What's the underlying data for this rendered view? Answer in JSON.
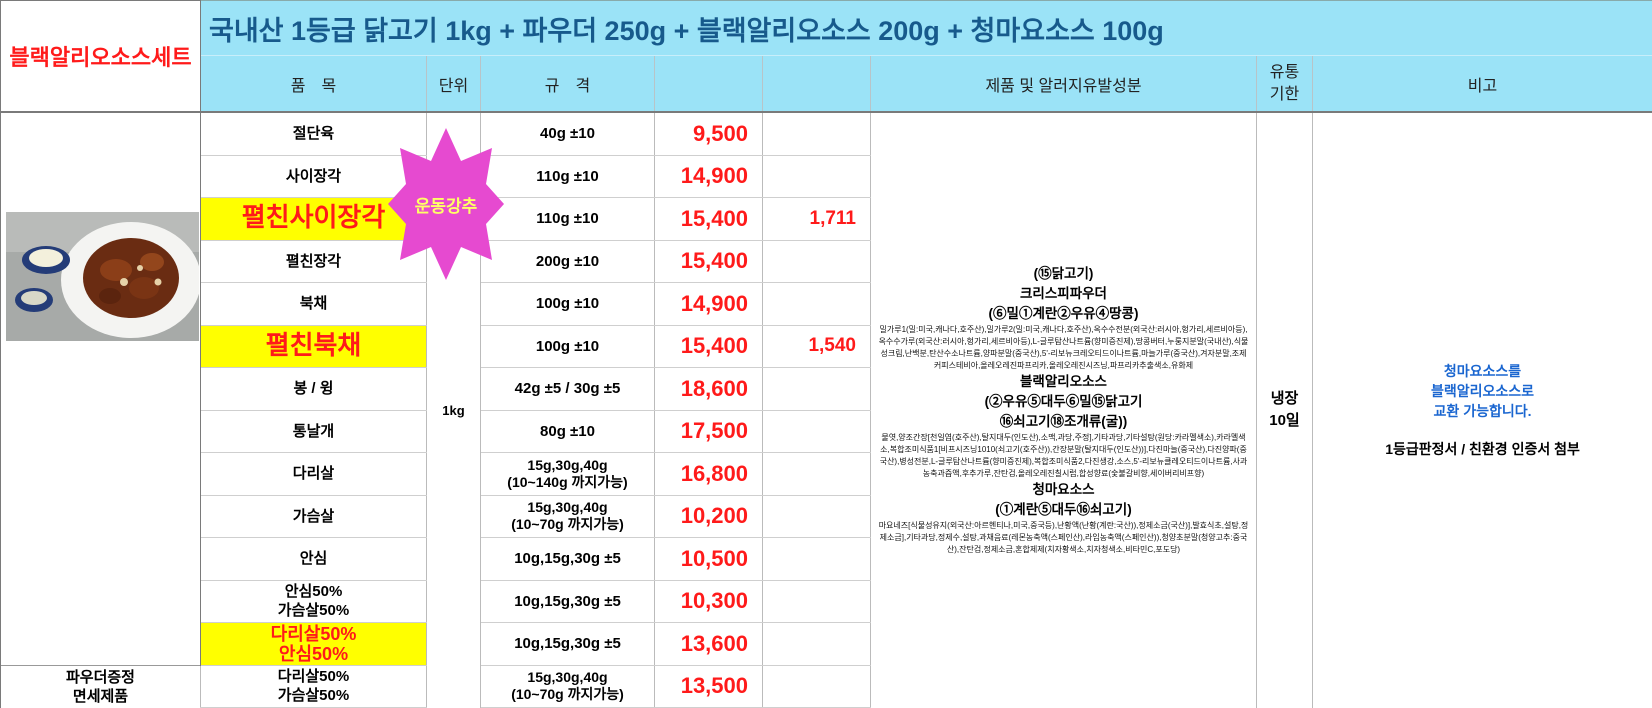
{
  "set_name": "블랙알리오소스세트",
  "title": "국내산 1등급 닭고기 1kg + 파우더 250g + 블랙알리오소스 200g + 청마요소스 100g",
  "headers": {
    "item": "품　목",
    "unit": "단위",
    "spec": "규　격",
    "ingredients": "제품 및 알러지유발성분",
    "shelf_line1": "유통",
    "shelf_line2": "기한",
    "note": "비고"
  },
  "rows": [
    {
      "name": "절단육",
      "spec": "40g ±10",
      "price": "9,500",
      "extra": ""
    },
    {
      "name": "사이장각",
      "spec": "110g ±10",
      "price": "14,900",
      "extra": ""
    },
    {
      "name": "펼친사이장각",
      "spec": "110g ±10",
      "price": "15,400",
      "extra": "1,711"
    },
    {
      "name": "펼친장각",
      "spec": "200g ±10",
      "price": "15,400",
      "extra": ""
    },
    {
      "name": "북채",
      "spec": "100g ±10",
      "price": "14,900",
      "extra": ""
    },
    {
      "name": "펼친북채",
      "spec": "100g ±10",
      "price": "15,400",
      "extra": "1,540"
    },
    {
      "name": "봉 / 윙",
      "spec": "42g ±5 / 30g ±5",
      "price": "18,600",
      "extra": ""
    },
    {
      "name": "통날개",
      "spec": "80g ±10",
      "price": "17,500",
      "extra": ""
    },
    {
      "name": "다리살",
      "spec": "15g,30g,40g",
      "spec2": "(10~140g 까지가능)",
      "price": "16,800",
      "extra": ""
    },
    {
      "name": "가슴살",
      "spec": "15g,30g,40g",
      "spec2": "(10~70g 까지가능)",
      "price": "10,200",
      "extra": ""
    },
    {
      "name": "안심",
      "spec": "10g,15g,30g ±5",
      "price": "10,500",
      "extra": ""
    },
    {
      "name": "안심50%",
      "name2": "가슴살50%",
      "spec": "10g,15g,30g ±5",
      "price": "10,300",
      "extra": ""
    },
    {
      "name": "다리살50%",
      "name2": "안심50%",
      "spec": "10g,15g,30g ±5",
      "price": "13,600",
      "extra": ""
    },
    {
      "name": "다리살50%",
      "name2": "가슴살50%",
      "spec": "15g,30g,40g",
      "spec2": "(10~70g 까지가능)",
      "price": "13,500",
      "extra": ""
    }
  ],
  "unit_value": "1kg",
  "footer_label_line1": "파우더증정",
  "footer_label_line2": "면세제품",
  "badge_text": "운동강추",
  "ingredients": {
    "chicken": "(⑮닭고기)",
    "powder_title": "크리스피파우더",
    "powder_allergens": "(⑥밀①계란②우유④땅콩)",
    "powder_detail": "밀가루1(밀:미국,캐나다,호주산),밀가루2(밀:미국,캐나다,호주산),옥수수전분(외국산:러시아,헝가리,세르비아등),옥수수가루(외국산:러시아,헝가리,세르비아등),L-글루탐산나트륨(향미증진제),땅콩버터,누룽지분말(국내산),식물성크림,난백분,탄산수소나트륨,양파분말(중국산),5'-리보뉴크레오티드이나트륨,마늘가루(중국산),겨자분말,조제커피스테비아,올레오레진파프리카,올레오레진시즈닝,파프리카추출색소,유화제",
    "black_title": "블랙알리오소스",
    "black_allergens1": "(②우유⑤대두⑥밀⑮닭고기",
    "black_allergens2": "⑯쇠고기⑱조개류(굴))",
    "black_detail": "물엿,양조간장[천일염(호주산),탈지대두(인도산),소맥,과당,주정],기타과당,기타설탕(원당:카라멜색소),카라멜색소,복합조미식품1[비프시즈닝1010(쇠고기(호주산)),간장분말(탈지대두(인도산))],다진마늘(중국산),다진양파(중국산),병성전분,L-글루탐산나트륨(향미증진제),복합조미식품2,다진생강,소스,5'-리보뉴클레오티드이나트륨,사과농축과즙액,후추가루,잔탄검,올레오레진칠시럽,합성향료(숯불갈비향,세이버리비프향)",
    "mayo_title": "청마요소스",
    "mayo_allergens": "(①계란⑤대두⑯쇠고기)",
    "mayo_detail": "마요네즈[식물성유지(외국산:아르헨티나,미국,중국등),난황액(난황(계란:국산)),정제소금(국산)],발효식초,설탕,정제소금],기타과당,정제수,설탕,과채음료(레몬농축액(스페인산),라임농축액(스페인산)),청양초분말(청양고추:중국산),잔탄검,정제소금,혼합제제(치자황색소,치자청색소,비타민C,포도당)"
  },
  "shelf_line1": "냉장",
  "shelf_line2": "10일",
  "note_line1": "청마요소스를",
  "note_line2": "블랙알리오소스로",
  "note_line3": "교환 가능합니다.",
  "note_cert": "1등급판정서 / 친환경 인증서 첨부",
  "colors": {
    "header_blue": "#9be3f7",
    "title_text": "#175a8c",
    "red": "#ff1a1a",
    "highlight_yellow": "#ffff00",
    "badge_magenta": "#e64ad0",
    "note_blue": "#1a66d0"
  }
}
